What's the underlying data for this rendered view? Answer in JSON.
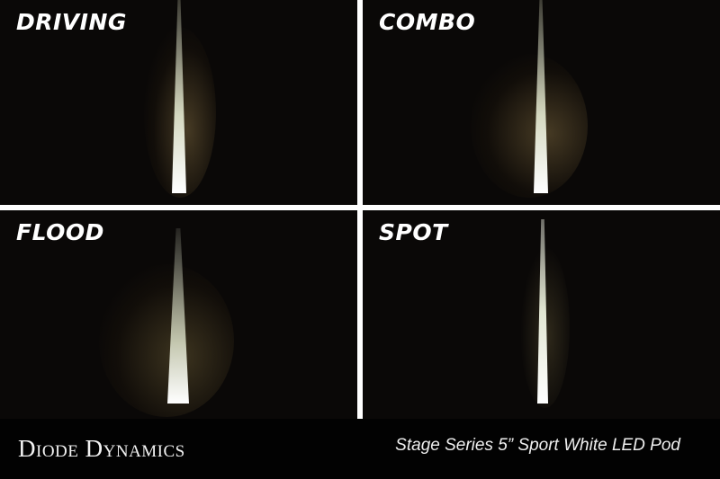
{
  "panels": [
    {
      "label": "DRIVING"
    },
    {
      "label": "COMBO"
    },
    {
      "label": "FLOOD"
    },
    {
      "label": "SPOT"
    }
  ],
  "footer": {
    "brand": "Diode Dynamics",
    "product": "Stage Series 5” Sport White LED Pod"
  }
}
